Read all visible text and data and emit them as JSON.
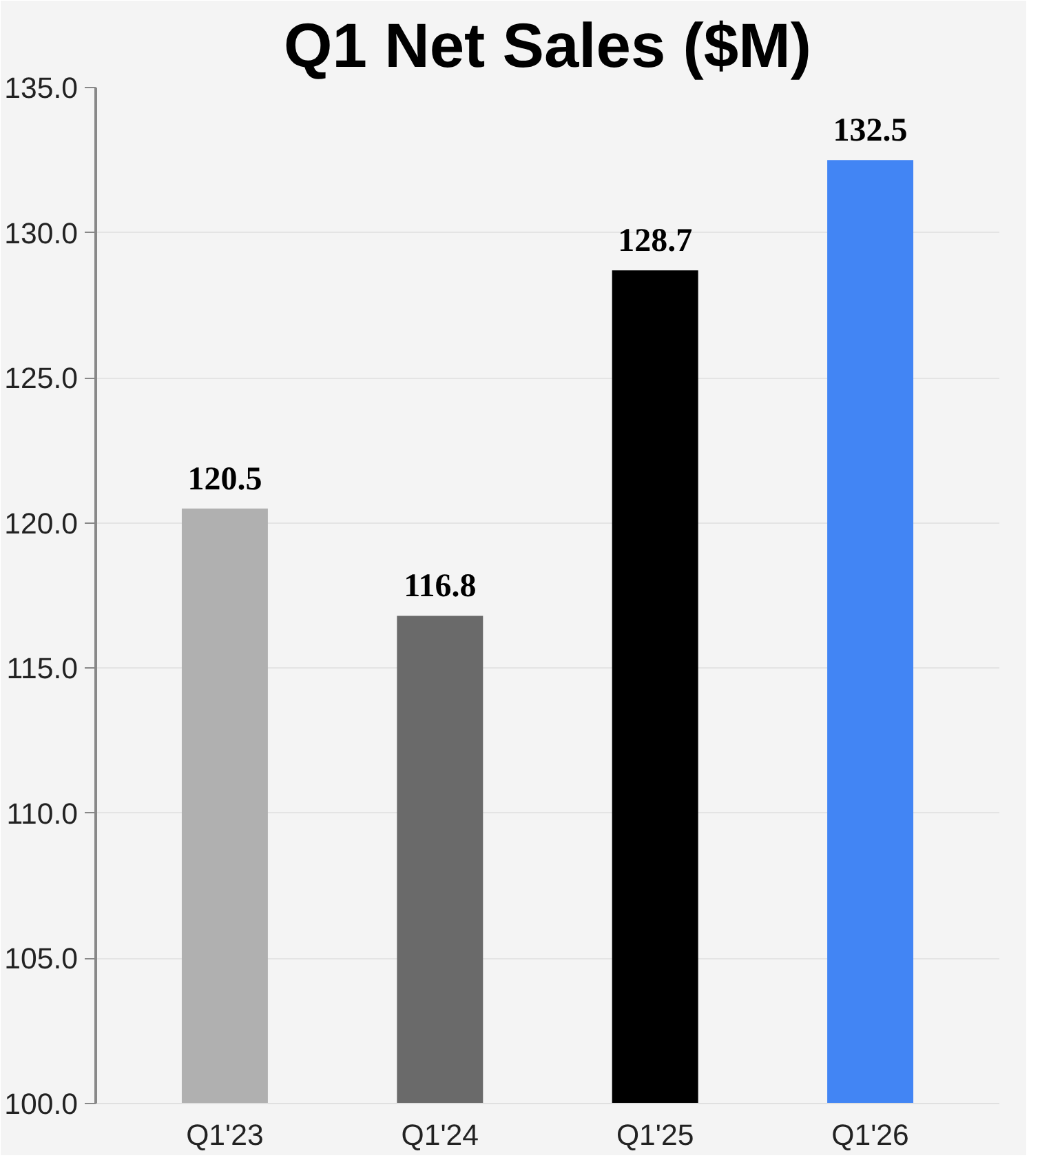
{
  "chart_data": {
    "type": "bar",
    "title": "Q1 Net Sales ($M)",
    "categories": [
      "Q1'23",
      "Q1'24",
      "Q1'25",
      "Q1'26"
    ],
    "values": [
      120.5,
      116.8,
      128.7,
      132.5
    ],
    "colors": [
      "#b0b0b0",
      "#6a6a6a",
      "#000000",
      "#4285f4"
    ],
    "ylim": [
      100,
      135
    ],
    "yticks": [
      {
        "value": 100,
        "label": "100.0"
      },
      {
        "value": 105,
        "label": "105.0"
      },
      {
        "value": 110,
        "label": "110.0"
      },
      {
        "value": 115,
        "label": "115.0"
      },
      {
        "value": 120,
        "label": "120.0"
      },
      {
        "value": 125,
        "label": "125.0"
      },
      {
        "value": 130,
        "label": "130.0"
      },
      {
        "value": 135,
        "label": "135.0"
      }
    ],
    "grid": "y",
    "data_labels": true
  }
}
